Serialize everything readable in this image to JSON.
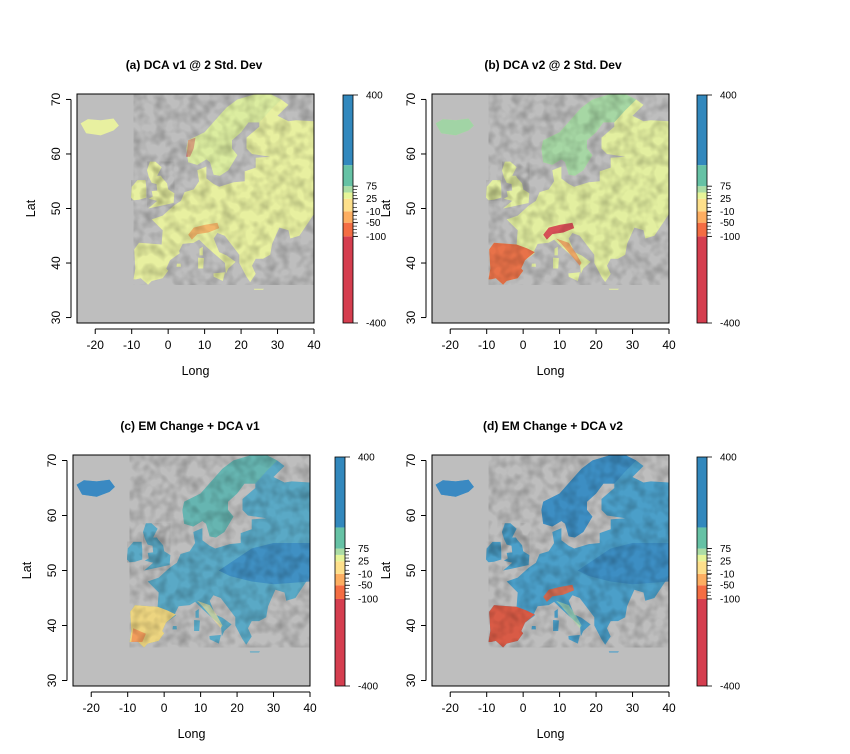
{
  "chart_data": [
    {
      "type": "heatmap",
      "title": "(a) DCA v1 @ 2 Std. Dev",
      "xlabel": "Long",
      "ylabel": "Lat",
      "xlim": [
        -25,
        40
      ],
      "ylim": [
        29,
        71
      ],
      "xticks": [
        -20,
        -10,
        0,
        10,
        20,
        30,
        40
      ],
      "yticks": [
        30,
        40,
        50,
        60,
        70
      ],
      "grid": false,
      "colorbar": {
        "position": "right",
        "labels": [
          "400",
          "75",
          "25",
          "-10",
          "-50",
          "-100",
          "-400"
        ],
        "label_values": [
          400,
          75,
          25,
          -10,
          -50,
          -100,
          -400
        ],
        "colors": [
          "#d53e4f",
          "#f46d43",
          "#fdae61",
          "#fee08b",
          "#ffffbf",
          "#e6f598",
          "#abdda4",
          "#66c2a5",
          "#3288bd"
        ]
      },
      "map_colors": {
        "background": "#bebebe",
        "land": "#e8f0a0",
        "hot": "#d53e4f",
        "cool": "#7fc8a5"
      }
    },
    {
      "type": "heatmap",
      "title": "(b) DCA v2 @ 2 Std. Dev",
      "xlabel": "Long",
      "ylabel": "Lat",
      "xlim": [
        -25,
        40
      ],
      "ylim": [
        29,
        71
      ],
      "xticks": [
        -20,
        -10,
        0,
        10,
        20,
        30,
        40
      ],
      "yticks": [
        30,
        40,
        50,
        60,
        70
      ],
      "grid": false,
      "colorbar": {
        "position": "right",
        "labels": [
          "400",
          "75",
          "25",
          "-10",
          "-50",
          "-100",
          "-400"
        ],
        "label_values": [
          400,
          75,
          25,
          -10,
          -50,
          -100,
          -400
        ],
        "colors": [
          "#d53e4f",
          "#f46d43",
          "#fdae61",
          "#fee08b",
          "#ffffbf",
          "#e6f598",
          "#abdda4",
          "#66c2a5",
          "#3288bd"
        ]
      },
      "map_colors": {
        "background": "#bebebe",
        "land": "#e3efa0",
        "hot": "#d53e4f",
        "cool": "#74c2a8"
      }
    },
    {
      "type": "heatmap",
      "title": "(c) EM Change + DCA v1",
      "xlabel": "Long",
      "ylabel": "Lat",
      "xlim": [
        -25,
        40
      ],
      "ylim": [
        29,
        71
      ],
      "xticks": [
        -20,
        -10,
        0,
        10,
        20,
        30,
        40
      ],
      "yticks": [
        30,
        40,
        50,
        60,
        70
      ],
      "grid": false,
      "colorbar": {
        "position": "right",
        "labels": [
          "400",
          "75",
          "25",
          "-10",
          "-50",
          "-100",
          "-400"
        ],
        "label_values": [
          400,
          75,
          25,
          -10,
          -50,
          -100,
          -400
        ],
        "colors": [
          "#d53e4f",
          "#f46d43",
          "#fdae61",
          "#fee08b",
          "#ffffbf",
          "#e6f598",
          "#abdda4",
          "#66c2a5",
          "#3288bd"
        ]
      },
      "map_colors": {
        "background": "#bebebe",
        "land": "#5aa9c6",
        "hot": "#f28e52",
        "cool": "#3a89c2"
      }
    },
    {
      "type": "heatmap",
      "title": "(d) EM Change + DCA v2",
      "xlabel": "Long",
      "ylabel": "Lat",
      "xlim": [
        -25,
        40
      ],
      "ylim": [
        29,
        71
      ],
      "xticks": [
        -20,
        -10,
        0,
        10,
        20,
        30,
        40
      ],
      "yticks": [
        30,
        40,
        50,
        60,
        70
      ],
      "grid": false,
      "colorbar": {
        "position": "right",
        "labels": [
          "400",
          "75",
          "25",
          "-10",
          "-50",
          "-100",
          "-400"
        ],
        "label_values": [
          400,
          75,
          25,
          -10,
          -50,
          -100,
          -400
        ],
        "colors": [
          "#d53e4f",
          "#f46d43",
          "#fdae61",
          "#fee08b",
          "#ffffbf",
          "#e6f598",
          "#abdda4",
          "#66c2a5",
          "#3288bd"
        ]
      },
      "map_colors": {
        "background": "#bebebe",
        "land": "#4b9fc9",
        "hot": "#d9483f",
        "cool": "#3a89c2"
      }
    }
  ]
}
